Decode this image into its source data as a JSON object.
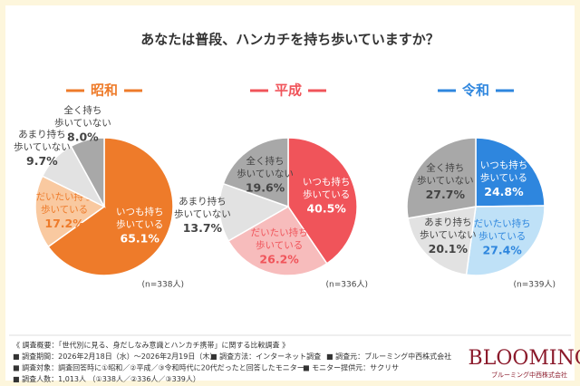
{
  "title": "あなたは普段、ハンカチを持ち歩いていますか？",
  "chart_data": [
    {
      "type": "pie",
      "title": "昭和",
      "title_color": "#ee7b2a",
      "categories": [
        [
          "いつも持ち",
          "歩いている"
        ],
        [
          "だいたい持ち",
          "歩いている"
        ],
        [
          "あまり持ち",
          "歩いていない"
        ],
        [
          "全く持ち",
          "歩いていない"
        ]
      ],
      "values": [
        65.1,
        17.2,
        9.7,
        8.0
      ],
      "value_labels": [
        "65.1%",
        "17.2%",
        "9.7%",
        "8.0%"
      ],
      "colors": [
        "#ee7b2a",
        "#f9c9a0",
        "#e2e2e2",
        "#a8a8a8"
      ],
      "label_colors": [
        "#ffffff",
        "#ee7b2a",
        "#444444",
        "#444444"
      ],
      "note": "(n=338人)"
    },
    {
      "type": "pie",
      "title": "平成",
      "title_color": "#f0545a",
      "categories": [
        [
          "いつも持ち",
          "歩いている"
        ],
        [
          "だいたい持ち",
          "歩いている"
        ],
        [
          "あまり持ち",
          "歩いていない"
        ],
        [
          "全く持ち",
          "歩いていない"
        ]
      ],
      "values": [
        40.5,
        26.2,
        13.7,
        19.6
      ],
      "value_labels": [
        "40.5%",
        "26.2%",
        "13.7%",
        "19.6%"
      ],
      "colors": [
        "#f0545a",
        "#f7bcbc",
        "#e2e2e2",
        "#a8a8a8"
      ],
      "label_colors": [
        "#ffffff",
        "#f0545a",
        "#444444",
        "#444444"
      ],
      "note": "(n=336人)"
    },
    {
      "type": "pie",
      "title": "令和",
      "title_color": "#2e86de",
      "categories": [
        [
          "いつも持ち",
          "歩いている"
        ],
        [
          "だいたい持ち",
          "歩いている"
        ],
        [
          "あまり持ち",
          "歩いていない"
        ],
        [
          "全く持ち",
          "歩いていない"
        ]
      ],
      "values": [
        24.8,
        27.4,
        20.1,
        27.7
      ],
      "value_labels": [
        "24.8%",
        "27.4%",
        "20.1%",
        "27.7%"
      ],
      "colors": [
        "#2e86de",
        "#bfe1f7",
        "#e2e2e2",
        "#a8a8a8"
      ],
      "label_colors": [
        "#ffffff",
        "#2e86de",
        "#444444",
        "#444444"
      ],
      "note": "(n=339人)"
    }
  ],
  "notes": [
    [
      "《 調査概要：「世代別に見る、身だしなみ意識とハンカチ携帯」に関する比較調査 》"
    ],
    [
      "■ 調査期間：2026年2月18日（水）〜2026年2月19日（木）",
      "■ 調査方法：インターネット調査",
      "■ 調査元：ブルーミング中西株式会社"
    ],
    [
      "■ 調査対象：調査回答時に①昭和／②平成／③令和時代に20代だったと回答したモニター",
      "■ モニター提供元：サクリサ"
    ],
    [
      "■ 調査人数：1,013人 （①338人／②336人／③339人）"
    ]
  ],
  "logo": {
    "name": "BLOOMING",
    "company": "ブルーミング中西株式会社"
  }
}
